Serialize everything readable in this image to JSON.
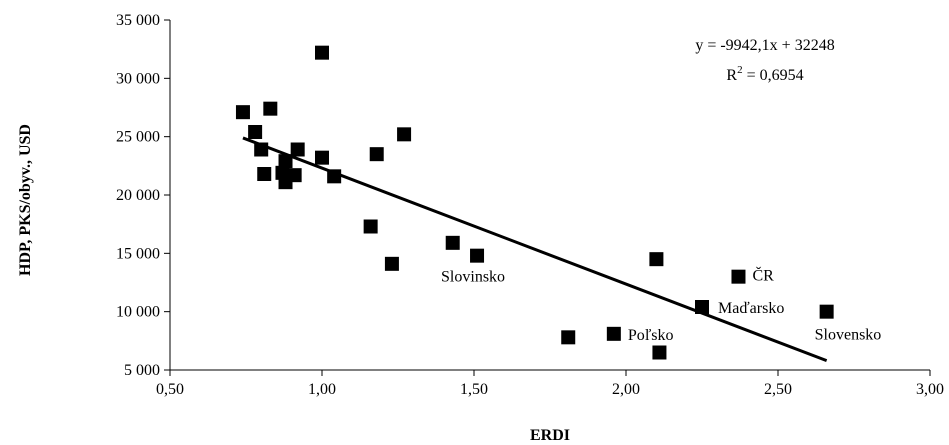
{
  "chart_data": {
    "type": "scatter",
    "xlabel": "ERDI",
    "ylabel": "HDP, PKS/obyv., USD",
    "xlim": [
      0.5,
      3.0
    ],
    "ylim": [
      5000,
      35000
    ],
    "x_ticks": [
      0.5,
      1.0,
      1.5,
      2.0,
      2.5,
      3.0
    ],
    "x_tick_labels": [
      "0,50",
      "1,00",
      "1,50",
      "2,00",
      "2,50",
      "3,00"
    ],
    "y_ticks": [
      5000,
      10000,
      15000,
      20000,
      25000,
      30000,
      35000
    ],
    "y_tick_labels": [
      "5 000",
      "10 000",
      "15 000",
      "20 000",
      "25 000",
      "30 000",
      "35 000"
    ],
    "grid": false,
    "marker": "square",
    "marker_color": "#000000",
    "points": [
      {
        "x": 0.74,
        "y": 27100,
        "label": ""
      },
      {
        "x": 0.78,
        "y": 25400,
        "label": ""
      },
      {
        "x": 0.8,
        "y": 23900,
        "label": ""
      },
      {
        "x": 0.81,
        "y": 21800,
        "label": ""
      },
      {
        "x": 0.83,
        "y": 27400,
        "label": ""
      },
      {
        "x": 0.87,
        "y": 21900,
        "label": ""
      },
      {
        "x": 0.88,
        "y": 21100,
        "label": ""
      },
      {
        "x": 0.88,
        "y": 22900,
        "label": ""
      },
      {
        "x": 0.91,
        "y": 21700,
        "label": ""
      },
      {
        "x": 0.92,
        "y": 23900,
        "label": ""
      },
      {
        "x": 1.0,
        "y": 32200,
        "label": ""
      },
      {
        "x": 1.0,
        "y": 23200,
        "label": ""
      },
      {
        "x": 1.04,
        "y": 21600,
        "label": ""
      },
      {
        "x": 1.16,
        "y": 17300,
        "label": ""
      },
      {
        "x": 1.18,
        "y": 23500,
        "label": ""
      },
      {
        "x": 1.23,
        "y": 14100,
        "label": ""
      },
      {
        "x": 1.27,
        "y": 25200,
        "label": ""
      },
      {
        "x": 1.43,
        "y": 15900,
        "label": ""
      },
      {
        "x": 1.51,
        "y": 14800,
        "label": "Slovinsko"
      },
      {
        "x": 1.81,
        "y": 7800,
        "label": ""
      },
      {
        "x": 1.96,
        "y": 8100,
        "label": "Poľsko"
      },
      {
        "x": 2.1,
        "y": 14500,
        "label": ""
      },
      {
        "x": 2.11,
        "y": 6500,
        "label": ""
      },
      {
        "x": 2.25,
        "y": 10400,
        "label": "Maďarsko"
      },
      {
        "x": 2.37,
        "y": 13000,
        "label": "ČR"
      },
      {
        "x": 2.66,
        "y": 10000,
        "label": "Slovensko"
      }
    ],
    "trendline": {
      "type": "linear",
      "slope": -9942.1,
      "intercept": 32248,
      "x_range": [
        0.74,
        2.66
      ],
      "equation_label": "y = -9942,1x + 32248",
      "r2_label_prefix": "R",
      "r2_label_sup": "2",
      "r2_label_suffix": " = 0,6954"
    }
  }
}
